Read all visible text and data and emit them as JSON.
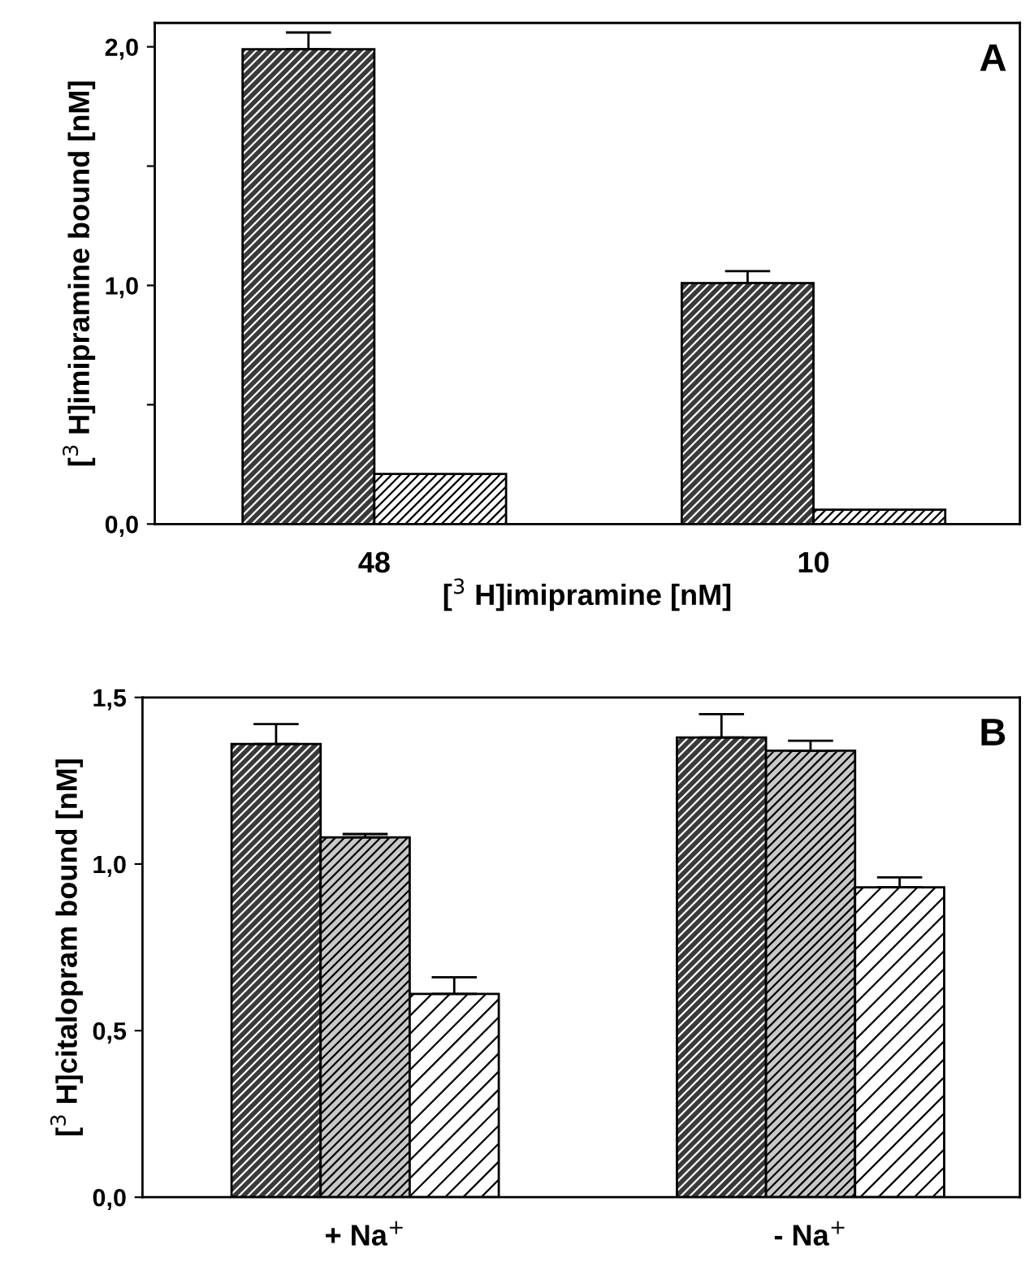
{
  "chart_data": [
    {
      "type": "bar",
      "title": "A",
      "xlabel": "[$^{3}$ H]imipramine [nM]",
      "ylabel": "[$^{3}$ H]imipramine bound [nM]",
      "categories": [
        "48",
        "10"
      ],
      "series": [
        {
          "color": "#3a3a3a",
          "values": [
            1.99,
            1.01
          ],
          "errors": [
            0.07,
            0.05
          ]
        },
        {
          "color": "#ffffff",
          "values": [
            0.21,
            0.06
          ]
        }
      ],
      "ylim": [
        0,
        2.1
      ],
      "yticks": [
        {
          "value": 0,
          "label": "0,0"
        },
        {
          "value": 0.5,
          "label": null
        },
        {
          "value": 1,
          "label": "1,0"
        },
        {
          "value": 1.5,
          "label": null
        },
        {
          "value": 2,
          "label": "2,0"
        }
      ],
      "grid": false,
      "legend": false
    },
    {
      "type": "bar",
      "title": "B",
      "ylabel": "[$^{3}$ H]citalopram bound [nM]",
      "categories": [
        "+ Na$^{+}$",
        "- Na$^{+}$"
      ],
      "series": [
        {
          "color": "#3a3a3a",
          "values": [
            1.36,
            1.38
          ],
          "errors": [
            0.06,
            0.07
          ]
        },
        {
          "color": "#c8c8c8",
          "values": [
            1.08,
            1.34
          ],
          "errors": [
            0.01,
            0.03
          ]
        },
        {
          "color": "#ffffff",
          "values": [
            0.61,
            0.93
          ],
          "errors": [
            0.05,
            0.03
          ]
        }
      ],
      "ylim": [
        0,
        1.5
      ],
      "yticks": [
        {
          "value": 0,
          "label": "0,0"
        },
        {
          "value": 0.5,
          "label": "0,5"
        },
        {
          "value": 1,
          "label": "1,0"
        },
        {
          "value": 1.5,
          "label": "1,5"
        }
      ],
      "grid": false,
      "legend": false
    }
  ]
}
